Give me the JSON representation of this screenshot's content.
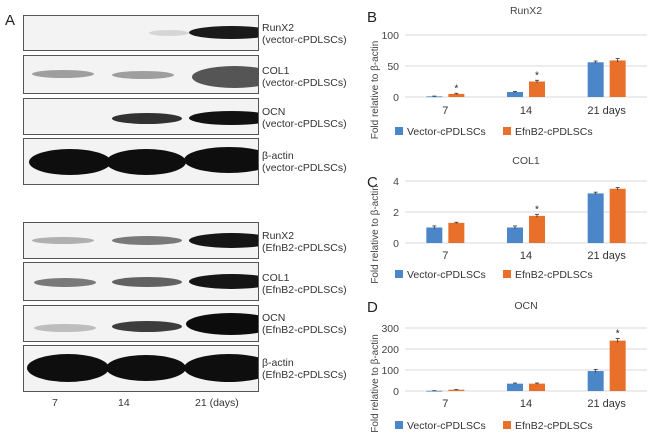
{
  "panel_a": {
    "letter": "A",
    "vector_blots": [
      {
        "label_line1": "RunX2",
        "label_line2": "(vector-cPDLSCs)"
      },
      {
        "label_line1": "COL1",
        "label_line2": "(vector-cPDLSCs)"
      },
      {
        "label_line1": "OCN",
        "label_line2": "(vector-cPDLSCs)"
      },
      {
        "label_line1": "β-actin",
        "label_line2": "(vector-cPDLSCs)"
      }
    ],
    "efnb2_blots": [
      {
        "label_line1": "RunX2",
        "label_line2": "(EfnB2-cPDLSCs)"
      },
      {
        "label_line1": "COL1",
        "label_line2": "(EfnB2-cPDLSCs)"
      },
      {
        "label_line1": "OCN",
        "label_line2": "(EfnB2-cPDLSCs)"
      },
      {
        "label_line1": "β-actin",
        "label_line2": "(EfnB2-cPDLSCs)"
      }
    ],
    "lane_labels": [
      "7",
      "14",
      "21 (days)"
    ]
  },
  "colors": {
    "vector": "#4a86c8",
    "efnb2": "#e8702a",
    "grid": "#d9d9d9"
  },
  "chart_data": [
    {
      "panel": "B",
      "type": "bar",
      "title": "RunX2",
      "xlabel": "",
      "ylabel": "Fold relative to β-actin",
      "categories": [
        "7",
        "14",
        "21 days"
      ],
      "ylim": [
        0,
        100
      ],
      "yticks": [
        0,
        50,
        100
      ],
      "grid": true,
      "legend_position": "bottom",
      "series": [
        {
          "name": "Vector-cPDLSCs",
          "values": [
            1,
            8,
            56
          ],
          "errors": [
            0.5,
            1,
            2
          ]
        },
        {
          "name": "EfnB2-cPDLSCs",
          "values": [
            5,
            25,
            59
          ],
          "errors": [
            1,
            2,
            3
          ]
        }
      ],
      "annotations": [
        {
          "category": "7",
          "series": "EfnB2-cPDLSCs",
          "text": "*"
        },
        {
          "category": "14",
          "series": "EfnB2-cPDLSCs",
          "text": "*"
        }
      ]
    },
    {
      "panel": "C",
      "type": "bar",
      "title": "COL1",
      "xlabel": "",
      "ylabel": "Fold relative to β-actin",
      "categories": [
        "7",
        "14",
        "21 days"
      ],
      "ylim": [
        0,
        4
      ],
      "yticks": [
        0,
        2,
        4
      ],
      "grid": true,
      "legend_position": "bottom",
      "series": [
        {
          "name": "Vector-cPDLSCs",
          "values": [
            1.0,
            1.0,
            3.2
          ],
          "errors": [
            0.1,
            0.1,
            0.08
          ]
        },
        {
          "name": "EfnB2-cPDLSCs",
          "values": [
            1.3,
            1.75,
            3.5
          ],
          "errors": [
            0.04,
            0.1,
            0.08
          ]
        }
      ],
      "annotations": [
        {
          "category": "14",
          "series": "EfnB2-cPDLSCs",
          "text": "*"
        }
      ]
    },
    {
      "panel": "D",
      "type": "bar",
      "title": "OCN",
      "xlabel": "",
      "ylabel": "Fold relative to β-actin",
      "categories": [
        "7",
        "14",
        "21 days"
      ],
      "ylim": [
        0,
        300
      ],
      "yticks": [
        0,
        100,
        200,
        300
      ],
      "grid": true,
      "legend_position": "bottom",
      "series": [
        {
          "name": "Vector-cPDLSCs",
          "values": [
            1,
            35,
            95
          ],
          "errors": [
            0.5,
            3,
            8
          ]
        },
        {
          "name": "EfnB2-cPDLSCs",
          "values": [
            6,
            35,
            240
          ],
          "errors": [
            1,
            3,
            10
          ]
        }
      ],
      "annotations": [
        {
          "category": "21 days",
          "series": "EfnB2-cPDLSCs",
          "text": "*"
        }
      ]
    }
  ]
}
